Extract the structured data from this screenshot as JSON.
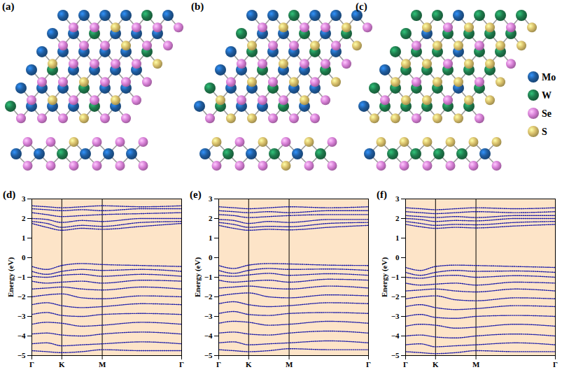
{
  "panels": [
    {
      "label": "(a)",
      "metals": [
        [
          "Mo",
          "Mo",
          "Mo",
          "Mo",
          "W",
          "Mo"
        ],
        [
          "Mo",
          "Mo",
          "W",
          "Mo",
          "Mo",
          "Mo"
        ],
        [
          "Mo",
          "Mo",
          "Mo",
          "Mo",
          "Mo",
          "W"
        ],
        [
          "Mo",
          "W",
          "Mo",
          "Mo",
          "Mo",
          "Mo"
        ],
        [
          "Mo",
          "Mo",
          "Mo",
          "W",
          "Mo",
          "Mo"
        ],
        [
          "W",
          "Mo",
          "Mo",
          "Mo",
          "W",
          "Mo"
        ]
      ],
      "chalcogens": [
        [
          "Se",
          "Se",
          "S",
          "Se",
          "Se",
          "Se"
        ],
        [
          "Se",
          "Se",
          "Se",
          "S",
          "Se",
          "Se"
        ],
        [
          "S",
          "Se",
          "Se",
          "Se",
          "Se",
          "S"
        ],
        [
          "Se",
          "Se",
          "S",
          "Se",
          "Se",
          "Se"
        ],
        [
          "Se",
          "S",
          "Se",
          "Se",
          "S",
          "Se"
        ],
        [
          "Se",
          "Se",
          "Se",
          "S",
          "Se",
          "Se"
        ]
      ],
      "side": {
        "top": [
          "Se",
          "Se",
          "S",
          "Se",
          "Se",
          "Se"
        ],
        "metals": [
          "Mo",
          "Mo",
          "W",
          "Mo",
          "Mo",
          "Mo"
        ],
        "bottom": [
          "Se",
          "Se",
          "Se",
          "Se",
          "Se",
          "Se"
        ]
      }
    },
    {
      "label": "(b)",
      "metals": [
        [
          "Mo",
          "Mo",
          "W",
          "Mo",
          "Mo",
          "Mo"
        ],
        [
          "W",
          "Mo",
          "Mo",
          "W",
          "Mo",
          "W"
        ],
        [
          "Mo",
          "W",
          "Mo",
          "Mo",
          "W",
          "Mo"
        ],
        [
          "Mo",
          "Mo",
          "W",
          "Mo",
          "Mo",
          "W"
        ],
        [
          "W",
          "Mo",
          "Mo",
          "W",
          "Mo",
          "Mo"
        ],
        [
          "Mo",
          "W",
          "Mo",
          "Mo",
          "W",
          "Mo"
        ]
      ],
      "chalcogens": [
        [
          "Se",
          "S",
          "Se",
          "Se",
          "S",
          "Se"
        ],
        [
          "S",
          "Se",
          "Se",
          "S",
          "Se",
          "S"
        ],
        [
          "Se",
          "Se",
          "S",
          "Se",
          "Se",
          "Se"
        ],
        [
          "Se",
          "S",
          "Se",
          "S",
          "Se",
          "S"
        ],
        [
          "S",
          "Se",
          "Se",
          "Se",
          "S",
          "Se"
        ],
        [
          "Se",
          "S",
          "S",
          "Se",
          "Se",
          "Se"
        ]
      ],
      "side": {
        "top": [
          "S",
          "Se",
          "S",
          "Se",
          "S",
          "Se"
        ],
        "metals": [
          "Mo",
          "W",
          "Mo",
          "W",
          "Mo",
          "W"
        ],
        "bottom": [
          "Se",
          "Se",
          "Se",
          "S",
          "Se",
          "Se"
        ]
      }
    },
    {
      "label": "(c)",
      "metals": [
        [
          "W",
          "W",
          "Mo",
          "W",
          "W",
          "W"
        ],
        [
          "W",
          "Mo",
          "W",
          "W",
          "W",
          "W"
        ],
        [
          "W",
          "W",
          "W",
          "Mo",
          "W",
          "W"
        ],
        [
          "Mo",
          "W",
          "W",
          "W",
          "W",
          "W"
        ],
        [
          "W",
          "W",
          "W",
          "W",
          "Mo",
          "W"
        ],
        [
          "Mo",
          "W",
          "W",
          "W",
          "W",
          "W"
        ]
      ],
      "chalcogens": [
        [
          "S",
          "Se",
          "S",
          "S",
          "Se",
          "S"
        ],
        [
          "Se",
          "S",
          "S",
          "Se",
          "S",
          "S"
        ],
        [
          "S",
          "S",
          "Se",
          "S",
          "S",
          "Se"
        ],
        [
          "S",
          "Se",
          "S",
          "S",
          "Se",
          "S"
        ],
        [
          "Se",
          "S",
          "S",
          "Se",
          "S",
          "S"
        ],
        [
          "S",
          "S",
          "Se",
          "S",
          "S",
          "Se"
        ]
      ],
      "side": {
        "top": [
          "S",
          "S",
          "S",
          "S",
          "S",
          "S"
        ],
        "metals": [
          "Mo",
          "W",
          "W",
          "W",
          "W",
          "Mo"
        ],
        "bottom": [
          "Se",
          "Se",
          "Se",
          "Se",
          "Se",
          "Se"
        ]
      }
    }
  ],
  "legend": [
    {
      "label": "Mo",
      "color": "#1f5c9e"
    },
    {
      "label": "W",
      "color": "#1e7a4c"
    },
    {
      "label": "Se",
      "color": "#d77fd6"
    },
    {
      "label": "S",
      "color": "#d8bf6a"
    }
  ],
  "chart_data": [
    {
      "type": "line",
      "title": "(d)",
      "ylabel": "Energy (eV)",
      "color": "#1c1ca8",
      "line_style": "dotted",
      "grid": "x",
      "x": [
        0,
        0.1,
        0.2,
        0.335,
        0.47,
        0.735,
        1
      ],
      "xlim": [
        0,
        1
      ],
      "xticks": [
        {
          "value": 0,
          "label": "Γ"
        },
        {
          "value": 0.2,
          "label": "K"
        },
        {
          "value": 0.47,
          "label": "M"
        },
        {
          "value": 1,
          "label": "Γ"
        }
      ],
      "ylim": [
        -5,
        3
      ],
      "yticks": [
        -5,
        -4,
        -3,
        -2,
        -1,
        0,
        1,
        2,
        3
      ],
      "bands": [
        [
          1.75,
          1.55,
          1.4,
          1.5,
          1.45,
          1.6,
          1.75
        ],
        [
          1.85,
          1.75,
          1.55,
          1.65,
          1.6,
          1.8,
          1.85
        ],
        [
          2.0,
          1.95,
          1.8,
          1.9,
          1.85,
          2.0,
          2.0
        ],
        [
          2.3,
          2.2,
          2.1,
          2.15,
          2.2,
          2.25,
          2.3
        ],
        [
          2.5,
          2.45,
          2.4,
          2.45,
          2.4,
          2.5,
          2.5
        ],
        [
          2.65,
          2.6,
          2.55,
          2.6,
          2.65,
          2.6,
          2.65
        ],
        [
          -0.45,
          -0.6,
          -0.4,
          -0.3,
          -0.35,
          -0.4,
          -0.45
        ],
        [
          -0.7,
          -0.85,
          -0.7,
          -0.6,
          -0.65,
          -0.6,
          -0.7
        ],
        [
          -0.95,
          -1.0,
          -0.9,
          -0.85,
          -0.95,
          -0.85,
          -0.95
        ],
        [
          -1.2,
          -1.3,
          -1.25,
          -1.2,
          -1.3,
          -1.15,
          -1.2
        ],
        [
          -1.6,
          -1.55,
          -1.5,
          -1.6,
          -1.65,
          -1.5,
          -1.6
        ],
        [
          -2.0,
          -1.9,
          -1.85,
          -2.05,
          -2.1,
          -1.95,
          -2.0
        ],
        [
          -2.4,
          -2.3,
          -2.45,
          -2.55,
          -2.5,
          -2.35,
          -2.4
        ],
        [
          -2.9,
          -2.8,
          -2.95,
          -3.0,
          -2.9,
          -2.85,
          -2.9
        ],
        [
          -3.4,
          -3.3,
          -3.35,
          -3.5,
          -3.45,
          -3.3,
          -3.4
        ],
        [
          -3.9,
          -3.85,
          -3.95,
          -4.0,
          -3.9,
          -3.8,
          -3.9
        ],
        [
          -4.4,
          -4.35,
          -4.5,
          -4.45,
          -4.4,
          -4.3,
          -4.4
        ],
        [
          -4.75,
          -4.8,
          -4.85,
          -4.8,
          -4.7,
          -4.75,
          -4.75
        ]
      ]
    },
    {
      "type": "line",
      "title": "(e)",
      "ylabel": "Energy (eV)",
      "color": "#1c1ca8",
      "line_style": "dotted",
      "grid": "x",
      "x": [
        0,
        0.1,
        0.2,
        0.335,
        0.47,
        0.735,
        1
      ],
      "xlim": [
        0,
        1
      ],
      "xticks": [
        {
          "value": 0,
          "label": "Γ"
        },
        {
          "value": 0.2,
          "label": "K"
        },
        {
          "value": 0.47,
          "label": "M"
        },
        {
          "value": 1,
          "label": "Γ"
        }
      ],
      "ylim": [
        -5,
        3
      ],
      "yticks": [
        -5,
        -4,
        -3,
        -2,
        -1,
        0,
        1,
        2,
        3
      ],
      "bands": [
        [
          1.65,
          1.5,
          1.4,
          1.45,
          1.42,
          1.55,
          1.65
        ],
        [
          1.8,
          1.7,
          1.55,
          1.6,
          1.58,
          1.75,
          1.8
        ],
        [
          1.95,
          1.9,
          1.75,
          1.85,
          1.8,
          1.95,
          1.95
        ],
        [
          2.2,
          2.15,
          2.05,
          2.1,
          2.15,
          2.2,
          2.2
        ],
        [
          2.4,
          2.35,
          2.3,
          2.35,
          2.3,
          2.4,
          2.4
        ],
        [
          2.6,
          2.55,
          2.5,
          2.55,
          2.6,
          2.55,
          2.6
        ],
        [
          -0.4,
          -0.55,
          -0.38,
          -0.3,
          -0.32,
          -0.38,
          -0.4
        ],
        [
          -0.65,
          -0.8,
          -0.65,
          -0.55,
          -0.6,
          -0.58,
          -0.65
        ],
        [
          -0.9,
          -0.95,
          -0.88,
          -0.8,
          -0.9,
          -0.82,
          -0.9
        ],
        [
          -1.15,
          -1.25,
          -1.2,
          -1.15,
          -1.25,
          -1.1,
          -1.15
        ],
        [
          -1.55,
          -1.5,
          -1.45,
          -1.55,
          -1.6,
          -1.45,
          -1.55
        ],
        [
          -1.95,
          -1.85,
          -1.8,
          -2.0,
          -2.05,
          -1.9,
          -1.95
        ],
        [
          -2.35,
          -2.25,
          -2.4,
          -2.5,
          -2.45,
          -2.3,
          -2.35
        ],
        [
          -2.85,
          -2.75,
          -2.9,
          -2.95,
          -2.85,
          -2.8,
          -2.85
        ],
        [
          -3.35,
          -3.25,
          -3.3,
          -3.45,
          -3.4,
          -3.25,
          -3.35
        ],
        [
          -3.85,
          -3.8,
          -3.9,
          -3.95,
          -3.85,
          -3.75,
          -3.85
        ],
        [
          -4.35,
          -4.3,
          -4.45,
          -4.4,
          -4.35,
          -4.25,
          -4.35
        ],
        [
          -4.7,
          -4.75,
          -4.8,
          -4.75,
          -4.65,
          -4.7,
          -4.7
        ]
      ]
    },
    {
      "type": "line",
      "title": "(f)",
      "ylabel": "Energy (eV)",
      "color": "#1c1ca8",
      "line_style": "dotted",
      "grid": "x",
      "x": [
        0,
        0.1,
        0.2,
        0.335,
        0.47,
        0.735,
        1
      ],
      "xlim": [
        0,
        1
      ],
      "xticks": [
        {
          "value": 0,
          "label": "Γ"
        },
        {
          "value": 0.2,
          "label": "K"
        },
        {
          "value": 0.47,
          "label": "M"
        },
        {
          "value": 1,
          "label": "Γ"
        }
      ],
      "ylim": [
        -5,
        3
      ],
      "yticks": [
        -5,
        -4,
        -3,
        -2,
        -1,
        0,
        1,
        2,
        3
      ],
      "bands": [
        [
          1.7,
          1.58,
          1.5,
          1.55,
          1.52,
          1.62,
          1.7
        ],
        [
          1.85,
          1.75,
          1.65,
          1.7,
          1.68,
          1.8,
          1.85
        ],
        [
          2.0,
          1.95,
          1.85,
          1.9,
          1.88,
          2.0,
          2.0
        ],
        [
          2.15,
          2.1,
          2.05,
          2.1,
          2.05,
          2.15,
          2.15
        ],
        [
          2.35,
          2.3,
          2.25,
          2.3,
          2.35,
          2.3,
          2.35
        ],
        [
          2.55,
          2.5,
          2.45,
          2.5,
          2.55,
          2.5,
          2.55
        ],
        [
          -0.5,
          -0.65,
          -0.45,
          -0.38,
          -0.4,
          -0.45,
          -0.5
        ],
        [
          -0.75,
          -0.9,
          -0.75,
          -0.65,
          -0.7,
          -0.68,
          -0.75
        ],
        [
          -1.0,
          -1.05,
          -0.95,
          -0.9,
          -1.0,
          -0.92,
          -1.0
        ],
        [
          -1.3,
          -1.4,
          -1.35,
          -1.3,
          -1.4,
          -1.25,
          -1.3
        ],
        [
          -1.7,
          -1.65,
          -1.6,
          -1.7,
          -1.75,
          -1.6,
          -1.7
        ],
        [
          -2.1,
          -2.0,
          -1.95,
          -2.15,
          -2.2,
          -2.05,
          -2.1
        ],
        [
          -2.5,
          -2.4,
          -2.55,
          -2.65,
          -2.6,
          -2.45,
          -2.5
        ],
        [
          -3.0,
          -2.9,
          -3.05,
          -3.1,
          -3.0,
          -2.95,
          -3.0
        ],
        [
          -3.5,
          -3.4,
          -3.45,
          -3.6,
          -3.55,
          -3.4,
          -3.5
        ],
        [
          -4.0,
          -3.95,
          -4.05,
          -4.1,
          -4.0,
          -3.9,
          -4.0
        ],
        [
          -4.45,
          -4.4,
          -4.55,
          -4.5,
          -4.45,
          -4.35,
          -4.45
        ],
        [
          -4.8,
          -4.85,
          -4.9,
          -4.85,
          -4.75,
          -4.8,
          -4.8
        ]
      ]
    }
  ]
}
